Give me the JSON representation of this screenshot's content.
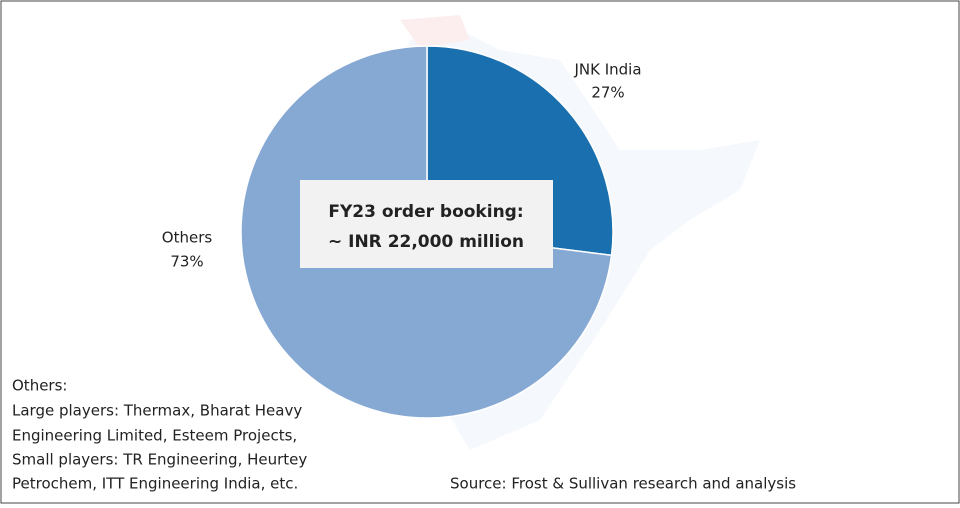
{
  "chart_data": {
    "type": "pie",
    "categories": [
      "JNK India",
      "Others"
    ],
    "values": [
      27,
      73
    ],
    "value_labels": [
      "27%",
      "73%"
    ],
    "colors": [
      "#1a6fae",
      "#86a9d4"
    ],
    "annotation": [
      "FY23 order booking:",
      "~ INR 22,000 million"
    ],
    "notes": [
      "Others:",
      "Large players: Thermax, Bharat Heavy",
      "Engineering Limited, Esteem Projects,",
      "Small players: TR Engineering, Heurtey",
      "Petrochem, ITT Engineering India, etc."
    ],
    "source": "Source: Frost & Sullivan research and analysis"
  }
}
